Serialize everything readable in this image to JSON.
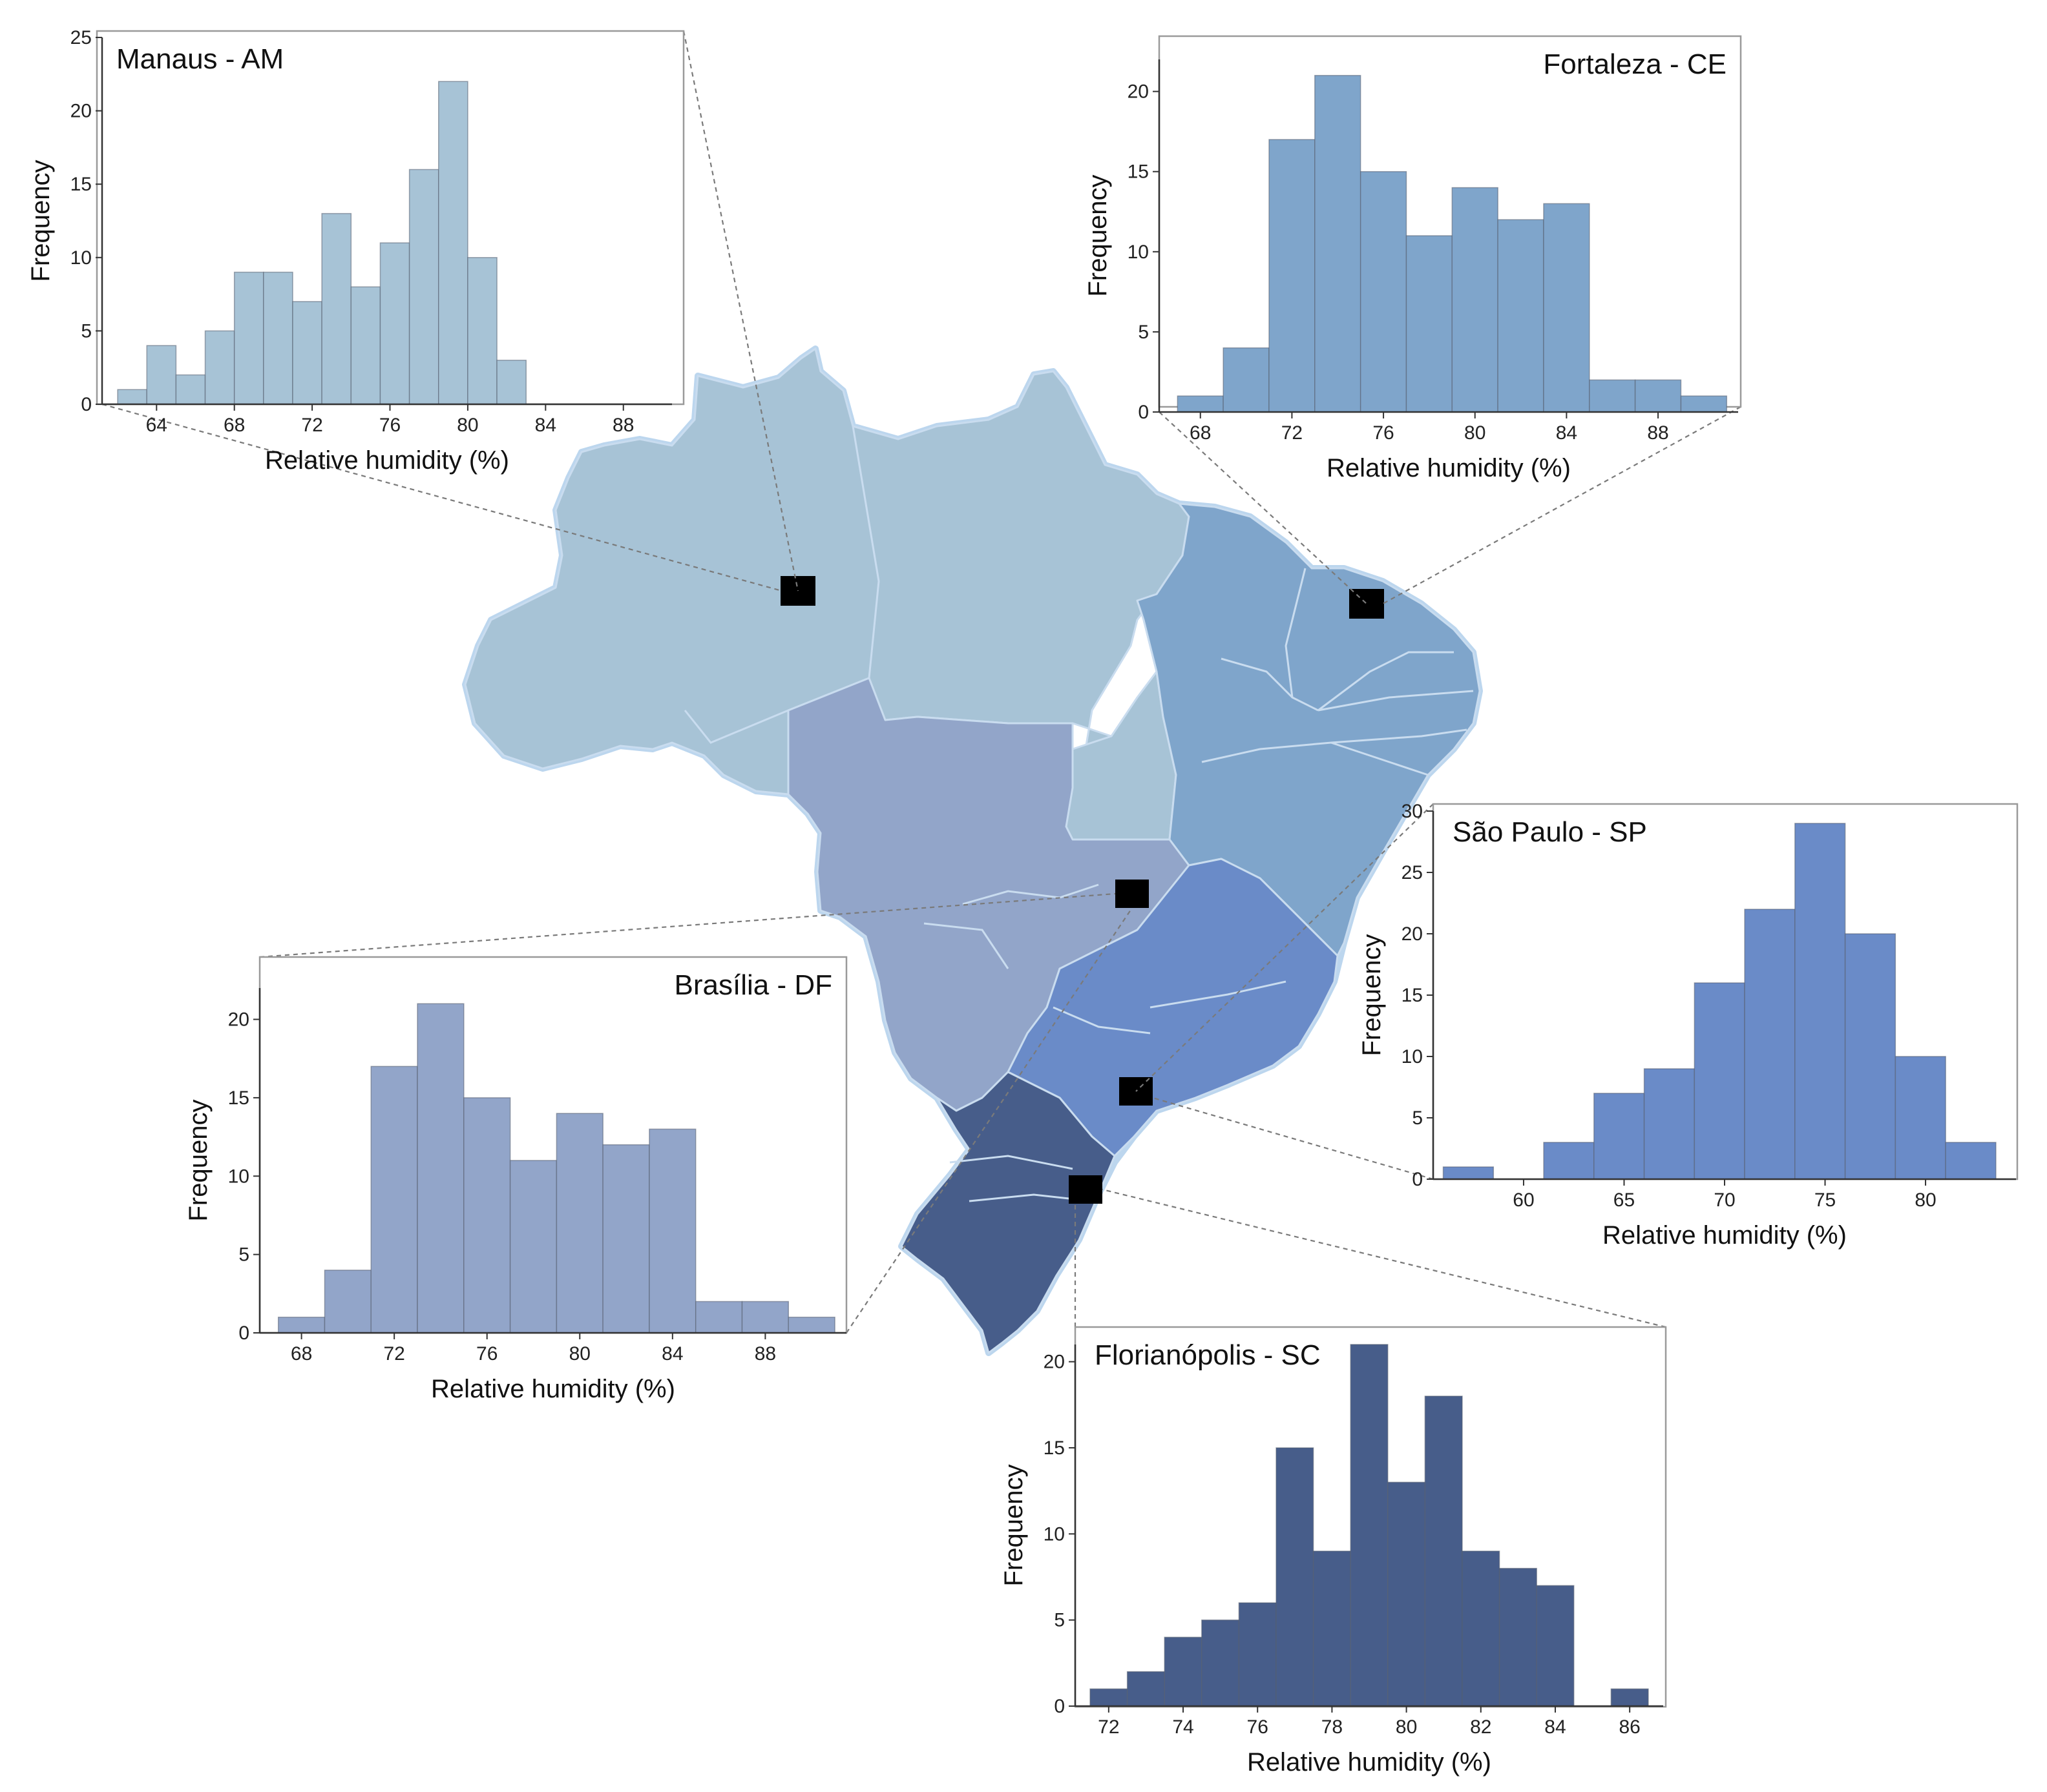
{
  "figure": {
    "description_free": true,
    "colors": {
      "north": "#a7c3d6",
      "northeast": "#7fa5cb",
      "centerwest": "#92a5c9",
      "southeast": "#6a8bc8",
      "south": "#475d8a",
      "marker": "#000000"
    }
  },
  "chart_data": [
    {
      "type": "histogram",
      "title": "Manaus - AM",
      "xlabel": "Relative humidity (%)",
      "ylabel": "Frequency",
      "bin_start": 62,
      "bin_width": 1.5,
      "values": [
        1,
        4,
        2,
        5,
        9,
        9,
        7,
        13,
        8,
        11,
        16,
        22,
        10,
        3
      ],
      "xlim": [
        61.2,
        90.5
      ],
      "ylim": [
        0,
        25
      ],
      "xticks": [
        64,
        68,
        72,
        76,
        80,
        84,
        88
      ],
      "yticks": [
        0,
        5,
        10,
        15,
        20,
        25
      ],
      "color": "#a7c3d6",
      "title_position": "top-left"
    },
    {
      "type": "histogram",
      "title": "Fortaleza - CE",
      "xlabel": "Relative humidity (%)",
      "ylabel": "Frequency",
      "bin_start": 67,
      "bin_width": 2,
      "values": [
        1,
        4,
        17,
        21,
        15,
        11,
        14,
        12,
        13,
        2,
        2,
        1
      ],
      "xlim": [
        66.2,
        91.5
      ],
      "ylim": [
        0,
        22
      ],
      "xticks": [
        68,
        72,
        76,
        80,
        84,
        88
      ],
      "yticks": [
        0,
        5,
        10,
        15,
        20
      ],
      "color": "#7fa5cb",
      "title_position": "top-right"
    },
    {
      "type": "histogram",
      "title": "Brasília - DF",
      "xlabel": "Relative humidity (%)",
      "ylabel": "Frequency",
      "bin_start": 67,
      "bin_width": 2,
      "values": [
        1,
        4,
        17,
        21,
        15,
        11,
        14,
        12,
        13,
        2,
        2,
        1
      ],
      "xlim": [
        66.2,
        91.5
      ],
      "ylim": [
        0,
        22
      ],
      "xticks": [
        68,
        72,
        76,
        80,
        84,
        88
      ],
      "yticks": [
        0,
        5,
        10,
        15,
        20
      ],
      "color": "#92a5c9",
      "title_position": "top-right"
    },
    {
      "type": "histogram",
      "title": "São Paulo - SP",
      "xlabel": "Relative humidity (%)",
      "ylabel": "Frequency",
      "bin_start": 56,
      "bin_width": 2.5,
      "values": [
        1,
        0,
        3,
        7,
        9,
        16,
        22,
        29,
        20,
        10,
        3
      ],
      "xlim": [
        55.5,
        84.5
      ],
      "ylim": [
        0,
        30
      ],
      "xticks": [
        60,
        65,
        70,
        75,
        80
      ],
      "yticks": [
        0,
        5,
        10,
        15,
        20,
        25,
        30
      ],
      "color": "#6a8bc8",
      "title_position": "top-left"
    },
    {
      "type": "histogram",
      "title": "Florianópolis - SC",
      "xlabel": "Relative humidity (%)",
      "ylabel": "Frequency",
      "bin_start": 71.5,
      "bin_width": 1,
      "values": [
        1,
        2,
        4,
        5,
        6,
        15,
        9,
        21,
        13,
        18,
        9,
        8,
        7,
        0,
        1
      ],
      "xlim": [
        71.1,
        86.9
      ],
      "ylim": [
        0,
        21
      ],
      "xticks": [
        72,
        74,
        76,
        78,
        80,
        82,
        84,
        86
      ],
      "yticks": [
        0,
        5,
        10,
        15,
        20
      ],
      "color": "#475d8a",
      "title_position": "top-left"
    }
  ]
}
